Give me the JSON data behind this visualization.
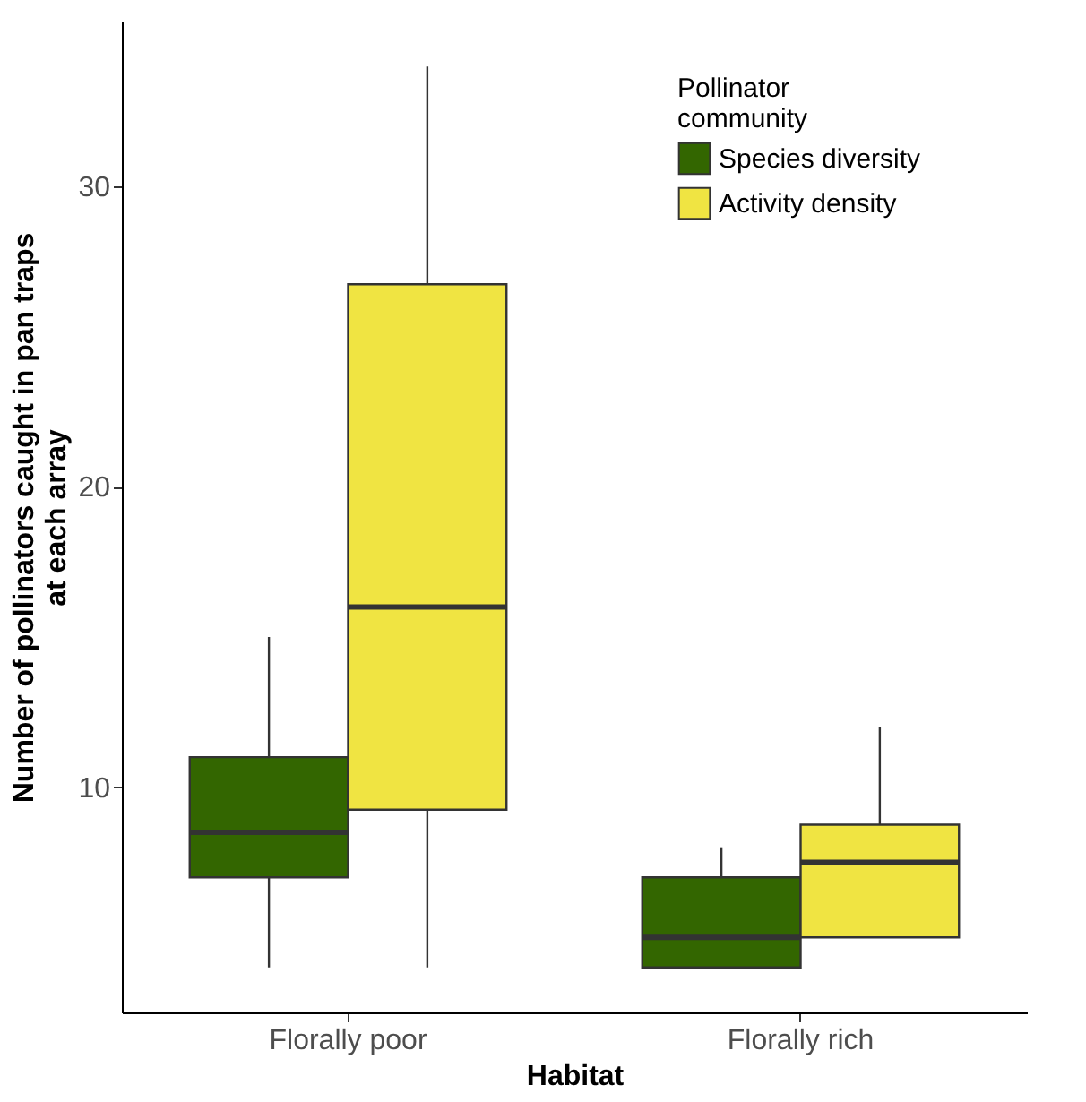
{
  "chart_data": {
    "type": "box",
    "xlabel": "Habitat",
    "ylabel": "Number of pollinators caught in pan traps at each array",
    "legend_title": "Pollinator community",
    "categories": [
      "Florally poor",
      "Florally rich"
    ],
    "series": [
      {
        "name": "Species diversity",
        "color": "#336600",
        "boxes": [
          {
            "low": 4,
            "q1": 7,
            "median": 8.5,
            "q3": 11,
            "high": 15
          },
          {
            "low": 4,
            "q1": 4,
            "median": 5,
            "q3": 7,
            "high": 8
          }
        ]
      },
      {
        "name": "Activity density",
        "color": "#f0e442",
        "boxes": [
          {
            "low": 4,
            "q1": 9.25,
            "median": 16,
            "q3": 26.75,
            "high": 34
          },
          {
            "low": 5,
            "q1": 5,
            "median": 7.5,
            "q3": 8.75,
            "high": 12
          }
        ]
      }
    ],
    "ylim": [
      2.5,
      35.5
    ],
    "yticks": [
      10,
      20,
      30
    ],
    "grid": false,
    "legend": "top right"
  }
}
